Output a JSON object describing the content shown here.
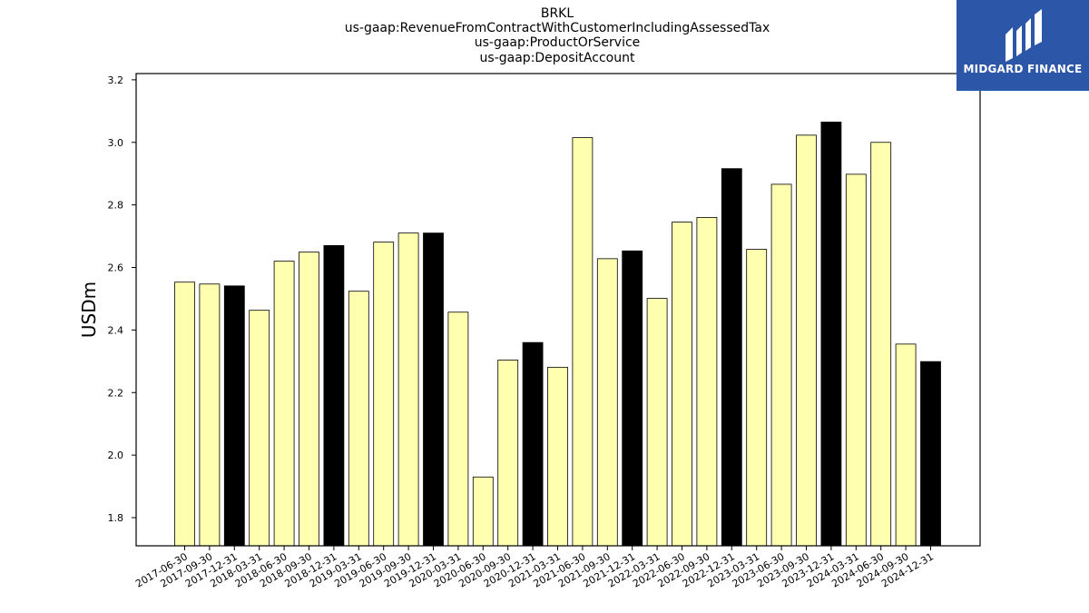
{
  "chart_data": {
    "type": "bar",
    "title": [
      "BRKL",
      "us-gaap:RevenueFromContractWithCustomerIncludingAssessedTax",
      "us-gaap:ProductOrService",
      "us-gaap:DepositAccount"
    ],
    "xlabel": "",
    "ylabel": "USDm",
    "ylim": [
      1.71,
      3.22
    ],
    "yticks": [
      "1.8",
      "2.0",
      "2.2",
      "2.4",
      "2.6",
      "2.8",
      "3.0",
      "3.2"
    ],
    "grid": false,
    "categories": [
      "2017-06-30",
      "2017-09-30",
      "2017-12-31",
      "2018-03-31",
      "2018-06-30",
      "2018-09-30",
      "2018-12-31",
      "2019-03-31",
      "2019-06-30",
      "2019-09-30",
      "2019-12-31",
      "2020-03-31",
      "2020-06-30",
      "2020-09-30",
      "2020-12-31",
      "2021-03-31",
      "2021-06-30",
      "2021-09-30",
      "2021-12-31",
      "2022-03-31",
      "2022-06-30",
      "2022-09-30",
      "2022-12-31",
      "2023-03-31",
      "2023-06-30",
      "2023-09-30",
      "2023-12-31",
      "2024-03-31",
      "2024-06-30",
      "2024-09-30",
      "2024-12-31"
    ],
    "values": [
      2.553,
      2.547,
      2.541,
      2.463,
      2.62,
      2.649,
      2.67,
      2.524,
      2.681,
      2.71,
      2.71,
      2.457,
      1.93,
      2.304,
      2.36,
      2.281,
      3.015,
      2.628,
      2.653,
      2.501,
      2.745,
      2.76,
      2.916,
      2.658,
      2.866,
      3.023,
      3.065,
      2.898,
      3.0,
      2.355,
      2.299
    ],
    "bar_colors": [
      "#ffffb0",
      "#ffffb0",
      "#000000",
      "#ffffb0",
      "#ffffb0",
      "#ffffb0",
      "#000000",
      "#ffffb0",
      "#ffffb0",
      "#ffffb0",
      "#000000",
      "#ffffb0",
      "#ffffb0",
      "#ffffb0",
      "#000000",
      "#ffffb0",
      "#ffffb0",
      "#ffffb0",
      "#000000",
      "#ffffb0",
      "#ffffb0",
      "#ffffb0",
      "#000000",
      "#ffffb0",
      "#ffffb0",
      "#ffffb0",
      "#000000",
      "#ffffb0",
      "#ffffb0",
      "#ffffb0",
      "#000000"
    ]
  },
  "logo": {
    "text": "MIDGARD FINANCE",
    "background": "#2c57a8"
  }
}
